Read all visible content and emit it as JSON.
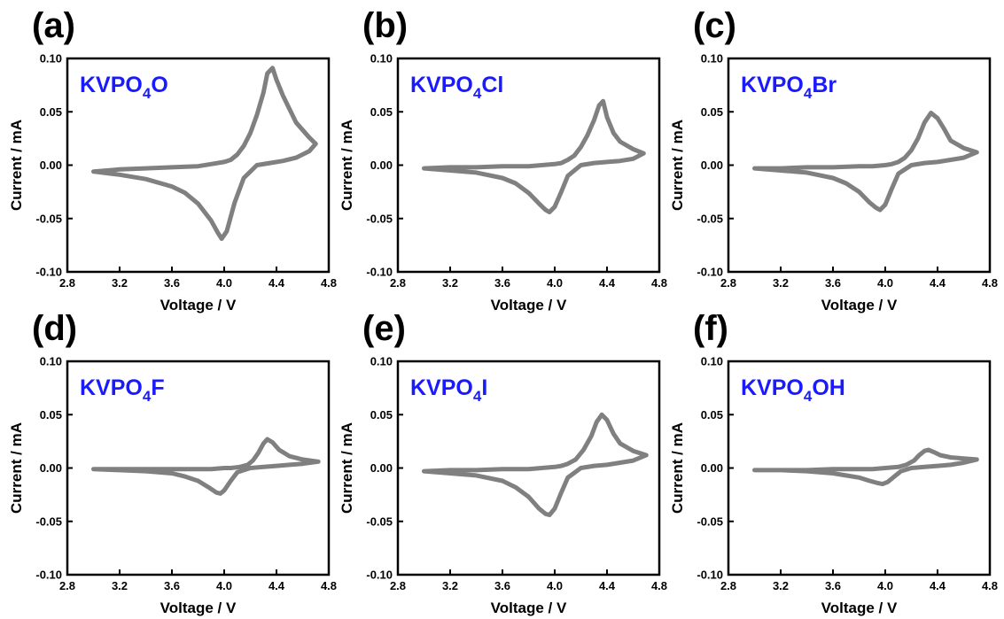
{
  "colors": {
    "curve": "#808080",
    "label": "#1a1aff",
    "axis": "#000000"
  },
  "chart_data": [
    {
      "type": "line",
      "panel": "(a)",
      "label": {
        "main": "KVPO",
        "sub": "4",
        "suffix": "O"
      },
      "xlabel": "Voltage / V",
      "ylabel": "Current / mA",
      "xlim": [
        2.8,
        4.8
      ],
      "ylim": [
        -0.1,
        0.1
      ],
      "x_ticks": [
        "2.8",
        "3.2",
        "3.6",
        "4.0",
        "4.4",
        "4.8"
      ],
      "y_ticks": [
        "-0.10",
        "-0.05",
        "0.00",
        "0.05",
        "0.10"
      ],
      "series": [
        {
          "x": [
            3.0,
            3.2,
            3.4,
            3.6,
            3.7,
            3.8,
            3.9,
            3.95,
            3.98,
            4.02,
            4.08,
            4.15,
            4.25,
            4.35,
            4.45,
            4.55,
            4.65,
            4.7,
            4.65,
            4.55,
            4.45,
            4.4,
            4.37,
            4.33,
            4.3,
            4.25,
            4.2,
            4.15,
            4.1,
            4.05,
            4.0,
            3.9,
            3.8,
            3.6,
            3.4,
            3.2,
            3.0
          ],
          "y": [
            -0.006,
            -0.009,
            -0.013,
            -0.02,
            -0.026,
            -0.036,
            -0.052,
            -0.063,
            -0.069,
            -0.062,
            -0.035,
            -0.012,
            0.0,
            0.002,
            0.004,
            0.007,
            0.013,
            0.02,
            0.026,
            0.04,
            0.065,
            0.08,
            0.091,
            0.086,
            0.068,
            0.047,
            0.03,
            0.018,
            0.01,
            0.005,
            0.003,
            0.001,
            -0.001,
            -0.002,
            -0.003,
            -0.004,
            -0.006
          ]
        }
      ]
    },
    {
      "type": "line",
      "panel": "(b)",
      "label": {
        "main": "KVPO",
        "sub": "4",
        "suffix": "Cl"
      },
      "xlabel": "Voltage / V",
      "ylabel": "Current / mA",
      "xlim": [
        2.8,
        4.8
      ],
      "ylim": [
        -0.1,
        0.1
      ],
      "x_ticks": [
        "2.8",
        "3.2",
        "3.6",
        "4.0",
        "4.4",
        "4.8"
      ],
      "y_ticks": [
        "-0.10",
        "-0.05",
        "0.00",
        "0.05",
        "0.10"
      ],
      "series": [
        {
          "x": [
            3.0,
            3.2,
            3.4,
            3.6,
            3.7,
            3.8,
            3.88,
            3.93,
            3.96,
            4.0,
            4.05,
            4.1,
            4.2,
            4.3,
            4.4,
            4.5,
            4.6,
            4.68,
            4.6,
            4.5,
            4.45,
            4.4,
            4.37,
            4.34,
            4.3,
            4.25,
            4.2,
            4.15,
            4.1,
            4.05,
            4.0,
            3.9,
            3.8,
            3.6,
            3.4,
            3.2,
            3.0
          ],
          "y": [
            -0.003,
            -0.005,
            -0.007,
            -0.012,
            -0.017,
            -0.026,
            -0.036,
            -0.042,
            -0.044,
            -0.039,
            -0.025,
            -0.01,
            0.0,
            0.002,
            0.003,
            0.004,
            0.006,
            0.011,
            0.015,
            0.022,
            0.03,
            0.045,
            0.06,
            0.056,
            0.042,
            0.028,
            0.017,
            0.009,
            0.005,
            0.002,
            0.001,
            0.0,
            -0.001,
            -0.001,
            -0.002,
            -0.002,
            -0.003
          ]
        }
      ]
    },
    {
      "type": "line",
      "panel": "(c)",
      "label": {
        "main": "KVPO",
        "sub": "4",
        "suffix": "Br"
      },
      "xlabel": "Voltage / V",
      "ylabel": "Current / mA",
      "xlim": [
        2.8,
        4.8
      ],
      "ylim": [
        -0.1,
        0.1
      ],
      "x_ticks": [
        "2.8",
        "3.2",
        "3.6",
        "4.0",
        "4.4",
        "4.8"
      ],
      "y_ticks": [
        "-0.10",
        "-0.05",
        "0.00",
        "0.05",
        "0.10"
      ],
      "series": [
        {
          "x": [
            3.0,
            3.2,
            3.4,
            3.6,
            3.7,
            3.8,
            3.88,
            3.93,
            3.96,
            4.0,
            4.05,
            4.1,
            4.2,
            4.3,
            4.4,
            4.5,
            4.6,
            4.7,
            4.6,
            4.5,
            4.45,
            4.4,
            4.35,
            4.3,
            4.25,
            4.2,
            4.15,
            4.1,
            4.05,
            4.0,
            3.9,
            3.8,
            3.6,
            3.4,
            3.2,
            3.0
          ],
          "y": [
            -0.003,
            -0.005,
            -0.007,
            -0.012,
            -0.017,
            -0.025,
            -0.035,
            -0.04,
            -0.042,
            -0.037,
            -0.022,
            -0.008,
            0.0,
            0.002,
            0.003,
            0.005,
            0.007,
            0.012,
            0.016,
            0.023,
            0.034,
            0.044,
            0.049,
            0.04,
            0.025,
            0.014,
            0.007,
            0.003,
            0.001,
            0.0,
            -0.001,
            -0.001,
            -0.002,
            -0.002,
            -0.003,
            -0.003
          ]
        }
      ]
    },
    {
      "type": "line",
      "panel": "(d)",
      "label": {
        "main": "KVPO",
        "sub": "4",
        "suffix": "F"
      },
      "xlabel": "Voltage / V",
      "ylabel": "Current / mA",
      "xlim": [
        2.8,
        4.8
      ],
      "ylim": [
        -0.1,
        0.1
      ],
      "x_ticks": [
        "2.8",
        "3.2",
        "3.6",
        "4.0",
        "4.4",
        "4.8"
      ],
      "y_ticks": [
        "-0.10",
        "-0.05",
        "0.00",
        "0.05",
        "0.10"
      ],
      "series": [
        {
          "x": [
            3.0,
            3.2,
            3.4,
            3.6,
            3.7,
            3.8,
            3.88,
            3.94,
            3.97,
            4.0,
            4.05,
            4.1,
            4.2,
            4.3,
            4.4,
            4.5,
            4.6,
            4.72,
            4.6,
            4.5,
            4.42,
            4.37,
            4.33,
            4.3,
            4.26,
            4.22,
            4.18,
            4.12,
            4.05,
            4.0,
            3.9,
            3.8,
            3.6,
            3.4,
            3.2,
            3.0
          ],
          "y": [
            -0.001,
            -0.002,
            -0.003,
            -0.005,
            -0.008,
            -0.012,
            -0.018,
            -0.023,
            -0.024,
            -0.021,
            -0.012,
            -0.004,
            0.0,
            0.001,
            0.002,
            0.003,
            0.004,
            0.006,
            0.008,
            0.011,
            0.017,
            0.024,
            0.027,
            0.023,
            0.014,
            0.007,
            0.003,
            0.001,
            0.0,
            0.0,
            -0.001,
            -0.001,
            -0.001,
            -0.001,
            -0.001,
            -0.001
          ]
        }
      ]
    },
    {
      "type": "line",
      "panel": "(e)",
      "label": {
        "main": "KVPO",
        "sub": "4",
        "suffix": "I"
      },
      "xlabel": "Voltage / V",
      "ylabel": "Current / mA",
      "xlim": [
        2.8,
        4.8
      ],
      "ylim": [
        -0.1,
        0.1
      ],
      "x_ticks": [
        "2.8",
        "3.2",
        "3.6",
        "4.0",
        "4.4",
        "4.8"
      ],
      "y_ticks": [
        "-0.10",
        "-0.05",
        "0.00",
        "0.05",
        "0.10"
      ],
      "series": [
        {
          "x": [
            3.0,
            3.2,
            3.4,
            3.6,
            3.7,
            3.8,
            3.88,
            3.93,
            3.96,
            4.0,
            4.05,
            4.1,
            4.2,
            4.3,
            4.4,
            4.5,
            4.6,
            4.7,
            4.6,
            4.5,
            4.45,
            4.4,
            4.36,
            4.32,
            4.28,
            4.22,
            4.16,
            4.1,
            4.05,
            4.0,
            3.9,
            3.8,
            3.6,
            3.4,
            3.2,
            3.0
          ],
          "y": [
            -0.003,
            -0.005,
            -0.007,
            -0.012,
            -0.018,
            -0.027,
            -0.038,
            -0.043,
            -0.044,
            -0.038,
            -0.023,
            -0.009,
            0.0,
            0.002,
            0.003,
            0.005,
            0.007,
            0.012,
            0.016,
            0.023,
            0.032,
            0.045,
            0.05,
            0.043,
            0.03,
            0.017,
            0.008,
            0.004,
            0.002,
            0.001,
            0.0,
            -0.001,
            -0.001,
            -0.002,
            -0.002,
            -0.003
          ]
        }
      ]
    },
    {
      "type": "line",
      "panel": "(f)",
      "label": {
        "main": "KVPO",
        "sub": "4",
        "suffix": "OH"
      },
      "xlabel": "Voltage / V",
      "ylabel": "Current / mA",
      "xlim": [
        2.8,
        4.8
      ],
      "ylim": [
        -0.1,
        0.1
      ],
      "x_ticks": [
        "2.8",
        "3.2",
        "3.6",
        "4.0",
        "4.4",
        "4.8"
      ],
      "y_ticks": [
        "-0.10",
        "-0.05",
        "0.00",
        "0.05",
        "0.10"
      ],
      "series": [
        {
          "x": [
            3.0,
            3.2,
            3.4,
            3.6,
            3.7,
            3.8,
            3.88,
            3.94,
            3.98,
            4.02,
            4.07,
            4.12,
            4.2,
            4.3,
            4.4,
            4.5,
            4.6,
            4.7,
            4.6,
            4.5,
            4.42,
            4.37,
            4.33,
            4.3,
            4.26,
            4.22,
            4.16,
            4.1,
            4.0,
            3.9,
            3.8,
            3.6,
            3.4,
            3.2,
            3.0
          ],
          "y": [
            -0.002,
            -0.002,
            -0.003,
            -0.005,
            -0.007,
            -0.009,
            -0.012,
            -0.014,
            -0.015,
            -0.013,
            -0.008,
            -0.003,
            0.0,
            0.001,
            0.002,
            0.003,
            0.005,
            0.008,
            0.009,
            0.01,
            0.012,
            0.015,
            0.017,
            0.016,
            0.012,
            0.007,
            0.003,
            0.001,
            0.0,
            -0.001,
            -0.001,
            -0.001,
            -0.002,
            -0.002,
            -0.002
          ]
        }
      ]
    }
  ]
}
